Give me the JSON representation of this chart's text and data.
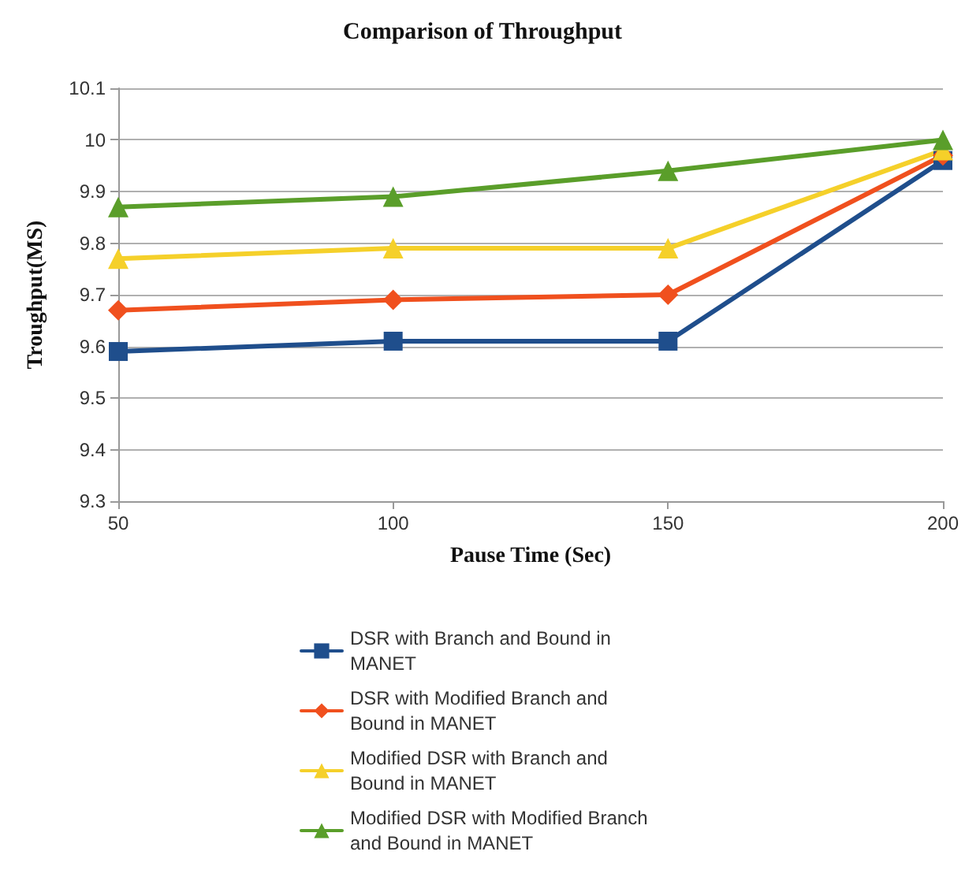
{
  "chart_data": {
    "type": "line",
    "title": "Comparison of Throughput",
    "xlabel": "Pause Time (Sec)",
    "ylabel": "Troughput(MS)",
    "x": [
      50,
      100,
      150,
      200
    ],
    "series": [
      {
        "name": "DSR with Branch and Bound in MANET",
        "color": "#1f4e8c",
        "marker": "square",
        "values": [
          9.59,
          9.61,
          9.61,
          9.96
        ]
      },
      {
        "name": "DSR with Modified Branch and Bound in MANET",
        "color": "#f0501e",
        "marker": "diamond",
        "values": [
          9.67,
          9.69,
          9.7,
          9.97
        ]
      },
      {
        "name": "Modified DSR with Branch and Bound in MANET",
        "color": "#f5d02a",
        "marker": "triangle",
        "values": [
          9.77,
          9.79,
          9.79,
          9.98
        ]
      },
      {
        "name": "Modified DSR with Modified Branch and Bound in MANET",
        "color": "#5a9e2a",
        "marker": "triangle",
        "values": [
          9.87,
          9.89,
          9.94,
          10.0
        ]
      }
    ],
    "xlim": [
      50,
      200
    ],
    "xticks": [
      50,
      100,
      150,
      200
    ],
    "ylim": [
      9.3,
      10.1
    ],
    "yticks": [
      9.3,
      9.4,
      9.5,
      9.6,
      9.7,
      9.8,
      9.9,
      10,
      10.1
    ],
    "grid": "y",
    "legend": "bottom",
    "line_style": "solid"
  }
}
